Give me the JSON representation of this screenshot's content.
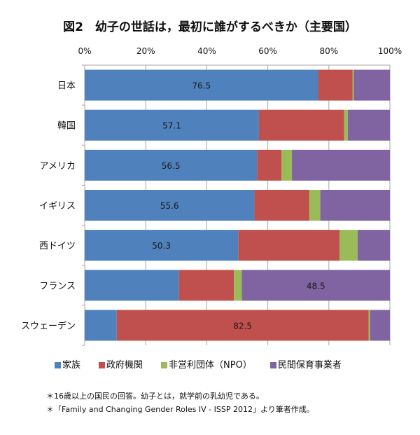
{
  "title": "図2　幼子の世話は，最初に誰がするべきか（主要国）",
  "chart_data": {
    "type": "bar",
    "orientation": "horizontal-stacked-100",
    "title": "図2　幼子の世話は，最初に誰がするべきか（主要国）",
    "categories": [
      "日本",
      "韓国",
      "アメリカ",
      "イギリス",
      "西ドイツ",
      "フランス",
      "スウェーデン"
    ],
    "series": [
      {
        "name": "家族",
        "color": "#4F81BD",
        "values": [
          76.5,
          57.1,
          56.5,
          55.6,
          50.3,
          30.9,
          10.5
        ]
      },
      {
        "name": "政府機関",
        "color": "#C0504D",
        "values": [
          11.3,
          27.9,
          8.0,
          18.0,
          33.2,
          18.0,
          82.5
        ]
      },
      {
        "name": "非営利団体（NPO）",
        "color": "#9BBB59",
        "values": [
          0.4,
          1.2,
          3.4,
          3.6,
          5.9,
          2.6,
          0.5
        ]
      },
      {
        "name": "民間保育事業者",
        "color": "#8064A2",
        "values": [
          11.8,
          13.8,
          32.1,
          22.8,
          10.6,
          48.5,
          6.5
        ]
      }
    ],
    "data_labels": [
      {
        "category": 0,
        "series": 0,
        "text": "76.5"
      },
      {
        "category": 1,
        "series": 0,
        "text": "57.1"
      },
      {
        "category": 2,
        "series": 0,
        "text": "56.5"
      },
      {
        "category": 3,
        "series": 0,
        "text": "55.6"
      },
      {
        "category": 4,
        "series": 0,
        "text": "50.3"
      },
      {
        "category": 5,
        "series": 3,
        "text": "48.5"
      },
      {
        "category": 6,
        "series": 1,
        "text": "82.5"
      }
    ],
    "xlim": [
      0,
      100
    ],
    "xticks": [
      "0%",
      "20%",
      "40%",
      "60%",
      "80%",
      "100%"
    ],
    "x_axis_position": "top",
    "grid": true,
    "legend_position": "bottom"
  },
  "notes": [
    "＊16歳以上の国民の回答。幼子とは，就学前の乳幼児である。",
    "＊「Family and Changing Gender Roles IV - ISSP 2012」より筆者作成。"
  ]
}
